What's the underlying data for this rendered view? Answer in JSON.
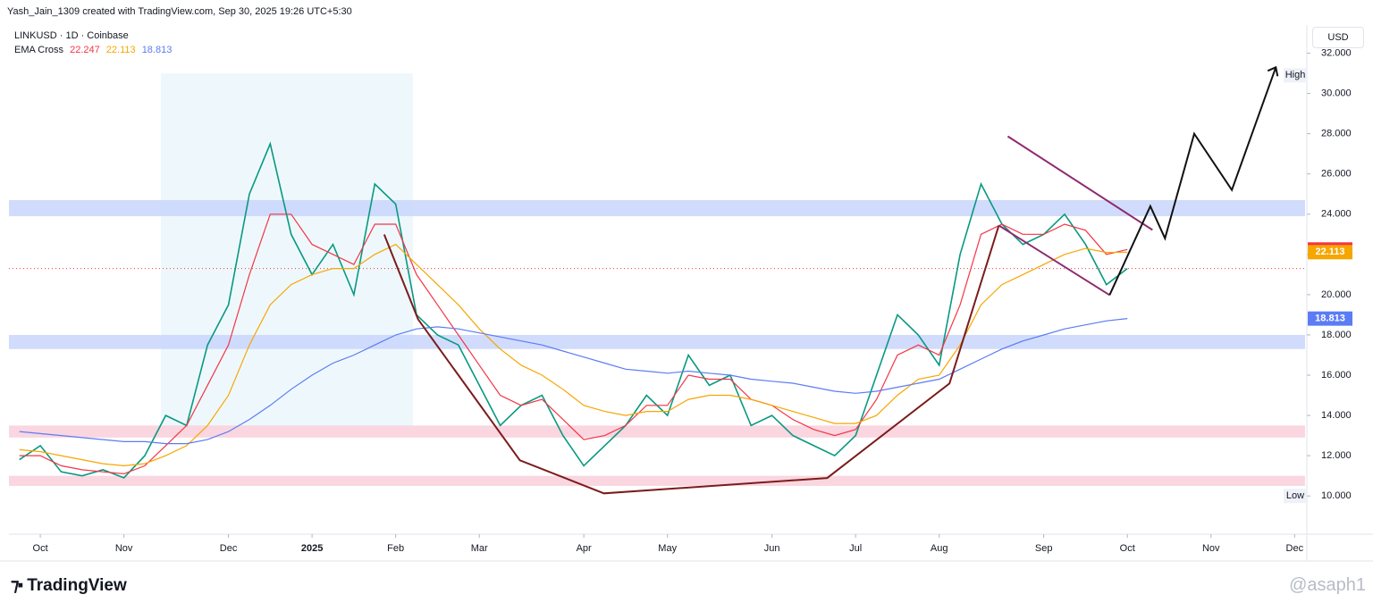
{
  "header": {
    "credit": "Yash_Jain_1309 created with TradingView.com, Sep 30, 2025 19:26 UTC+5:30",
    "brand": "TradingView",
    "watermark": "@asaph1",
    "currency": "USD"
  },
  "chart_data": {
    "type": "line",
    "title": "LINKUSD · 1D · Coinbase",
    "indicator": "EMA Cross",
    "categories": [
      null,
      "Oct",
      null,
      null,
      null,
      "Nov",
      null,
      null,
      null,
      null,
      "Dec",
      null,
      null,
      null,
      "2025",
      null,
      null,
      null,
      "Feb",
      null,
      null,
      null,
      "Mar",
      null,
      null,
      null,
      null,
      "Apr",
      null,
      null,
      null,
      "May",
      null,
      null,
      null,
      null,
      "Jun",
      null,
      null,
      null,
      "Jul",
      null,
      null,
      null,
      "Aug",
      null,
      null,
      null,
      null,
      "Sep",
      null,
      null,
      null,
      "Oct",
      null,
      null,
      null,
      "Nov",
      null,
      null,
      null,
      "Dec"
    ],
    "ylim": [
      8.1,
      33.4
    ],
    "yticks": [
      {
        "value": 10,
        "label": "10.000"
      },
      {
        "value": 12,
        "label": "12.000"
      },
      {
        "value": 14,
        "label": "14.000"
      },
      {
        "value": 16,
        "label": "16.000"
      },
      {
        "value": 18,
        "label": "18.000"
      },
      {
        "value": 20,
        "label": "20.000"
      },
      {
        "value": 22,
        "label": "22.000"
      },
      {
        "value": 24,
        "label": "24.000"
      },
      {
        "value": 26,
        "label": "26.000"
      },
      {
        "value": 28,
        "label": "28.000"
      },
      {
        "value": 30,
        "label": "30.000"
      },
      {
        "value": 32,
        "label": "32.000"
      }
    ],
    "grid": false,
    "last_price": 21.3,
    "series": [
      {
        "color": "#089981",
        "values": [
          11.8,
          12.5,
          11.2,
          11.0,
          11.3,
          10.9,
          12.0,
          14.0,
          13.5,
          17.5,
          19.5,
          25.0,
          27.5,
          23.0,
          21.0,
          22.5,
          20.0,
          25.5,
          24.5,
          19.0,
          18.0,
          17.5,
          15.5,
          13.5,
          14.5,
          15.0,
          13.0,
          11.5,
          12.5,
          13.5,
          15.0,
          14.0,
          17.0,
          15.5,
          16.0,
          13.5,
          14.0,
          13.0,
          12.5,
          12.0,
          13.0,
          16.0,
          19.0,
          18.0,
          16.5,
          22.0,
          25.5,
          23.5,
          22.5,
          23.0,
          24.0,
          22.5,
          20.5,
          21.3,
          null,
          null,
          null,
          null,
          null,
          null,
          null,
          null
        ]
      },
      {
        "color": "#f23645",
        "last_value": 22.247,
        "last_label": "22.247",
        "values": [
          12.0,
          12.0,
          11.5,
          11.3,
          11.2,
          11.1,
          11.5,
          12.5,
          13.5,
          15.5,
          17.5,
          21.0,
          24.0,
          24.0,
          22.5,
          22.0,
          21.5,
          23.5,
          23.5,
          21.0,
          19.5,
          18.0,
          16.5,
          15.0,
          14.5,
          14.8,
          13.8,
          12.8,
          13.0,
          13.5,
          14.5,
          14.5,
          16.0,
          15.8,
          15.8,
          14.8,
          14.5,
          13.8,
          13.3,
          13.0,
          13.3,
          14.8,
          17.0,
          17.5,
          17.0,
          19.5,
          23.0,
          23.5,
          23.0,
          23.0,
          23.5,
          23.2,
          22.0,
          22.247,
          null,
          null,
          null,
          null,
          null,
          null,
          null,
          null
        ]
      },
      {
        "color": "#f7a600",
        "last_value": 22.113,
        "last_label": "22.113",
        "values": [
          12.3,
          12.2,
          12.0,
          11.8,
          11.6,
          11.5,
          11.6,
          12.0,
          12.5,
          13.5,
          15.0,
          17.5,
          19.5,
          20.5,
          21.0,
          21.3,
          21.3,
          22.0,
          22.5,
          21.5,
          20.5,
          19.5,
          18.3,
          17.3,
          16.5,
          16.0,
          15.3,
          14.5,
          14.2,
          14.0,
          14.2,
          14.2,
          14.8,
          15.0,
          15.0,
          14.8,
          14.5,
          14.2,
          13.9,
          13.6,
          13.6,
          14.0,
          15.0,
          15.8,
          16.0,
          17.5,
          19.5,
          20.5,
          21.0,
          21.5,
          22.0,
          22.3,
          22.1,
          22.113,
          null,
          null,
          null,
          null,
          null,
          null,
          null,
          null
        ]
      },
      {
        "color": "#5b7cf5",
        "last_value": 18.813,
        "last_label": "18.813",
        "values": [
          13.2,
          13.1,
          13.0,
          12.9,
          12.8,
          12.7,
          12.7,
          12.6,
          12.6,
          12.8,
          13.2,
          13.8,
          14.5,
          15.3,
          16.0,
          16.6,
          17.0,
          17.5,
          18.0,
          18.3,
          18.4,
          18.3,
          18.1,
          17.9,
          17.7,
          17.5,
          17.2,
          16.9,
          16.6,
          16.3,
          16.2,
          16.1,
          16.2,
          16.1,
          16.0,
          15.8,
          15.7,
          15.6,
          15.4,
          15.2,
          15.1,
          15.2,
          15.4,
          15.6,
          15.8,
          16.3,
          16.8,
          17.3,
          17.7,
          18.0,
          18.3,
          18.5,
          18.7,
          18.813,
          null,
          null,
          null,
          null,
          null,
          null,
          null,
          null
        ]
      }
    ],
    "zones": [
      {
        "low": 23.9,
        "high": 24.7,
        "color": "#c9d6fb"
      },
      {
        "low": 17.3,
        "high": 18.0,
        "color": "#c9d6fb"
      },
      {
        "low": 12.9,
        "high": 13.5,
        "color": "#f9cfdb"
      },
      {
        "low": 10.5,
        "high": 11.0,
        "color": "#f9cfdb"
      }
    ],
    "annotations": [
      {
        "color": "#7b1c1c",
        "x": [
          17.45,
          19.07,
          23.94,
          27.96,
          38.64,
          44.49,
          46.85
        ],
        "values": [
          22.99,
          18.78,
          11.77,
          10.13,
          10.89,
          15.59,
          23.44
        ]
      },
      {
        "color": "#8e2a6e",
        "x": [
          47.28,
          54.2
        ],
        "values": [
          27.87,
          23.22
        ]
      },
      {
        "color": "#8e2a6e",
        "x": [
          46.85,
          52.15
        ],
        "values": [
          23.44,
          19.98
        ]
      },
      {
        "color": "#111111",
        "x": [
          52.15,
          54.1,
          54.8,
          56.2,
          58.0,
          60.1
        ],
        "values": [
          19.98,
          24.4,
          22.8,
          28.0,
          25.2,
          31.3
        ]
      }
    ],
    "markers": [
      {
        "label": "High",
        "value": 30.9
      },
      {
        "label": "Low",
        "value": 10.0
      }
    ]
  }
}
